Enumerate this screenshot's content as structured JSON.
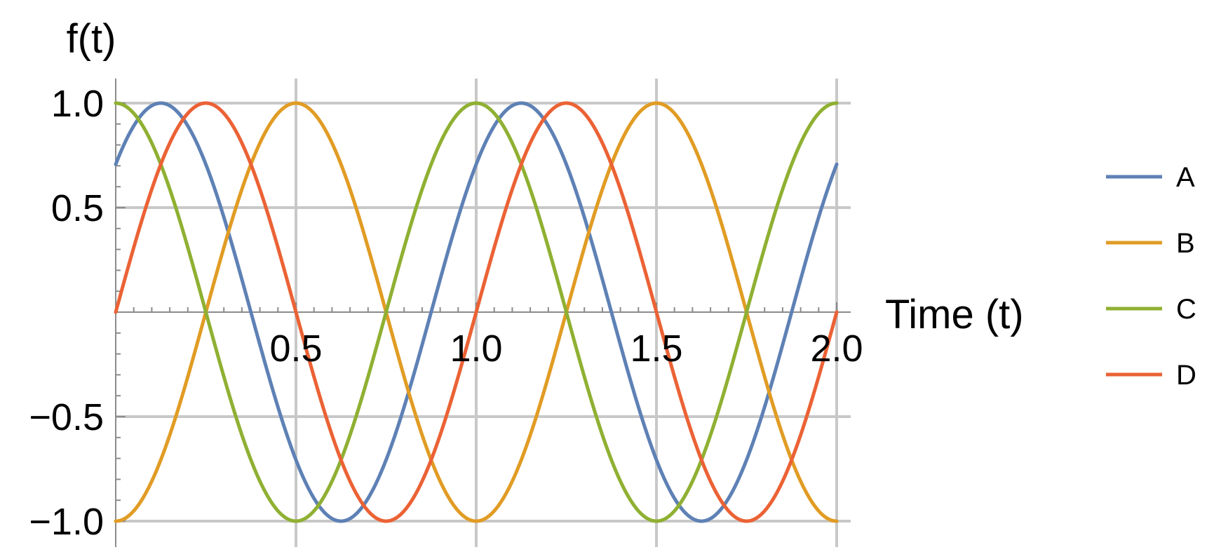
{
  "chart_data": {
    "type": "line",
    "xlabel": "Time (t)",
    "ylabel": "f(t)",
    "xlim": [
      0,
      2
    ],
    "ylim": [
      -1,
      1
    ],
    "x_ticks": [
      0.5,
      1.0,
      1.5,
      2.0
    ],
    "x_tick_labels": [
      "0.5",
      "1.0",
      "1.5",
      "2.0"
    ],
    "y_ticks": [
      -1.0,
      -0.5,
      0.5,
      1.0
    ],
    "y_tick_labels": [
      "−1.0",
      "−0.5",
      "0.5",
      "1.0"
    ],
    "grid": true,
    "legend_position": "right",
    "sample_step": 0.02,
    "series": [
      {
        "name": "A",
        "color": "#5e81b5",
        "formula": "cos(2*pi*(t - 0.125))",
        "values_at": {
          "0": 0.71,
          "0.125": 1.0,
          "0.625": -1.0,
          "1.125": 1.0,
          "1.625": -1.0,
          "2.0": 0.71
        }
      },
      {
        "name": "B",
        "color": "#e19c24",
        "formula": "-cos(2*pi*t)",
        "values_at": {
          "0": -1.0,
          "0.5": 1.0,
          "1.0": -1.0,
          "1.5": 1.0,
          "2.0": -1.0
        }
      },
      {
        "name": "C",
        "color": "#8fb032",
        "formula": "cos(2*pi*t)",
        "values_at": {
          "0": 1.0,
          "0.5": -1.0,
          "1.0": 1.0,
          "1.5": -1.0,
          "2.0": 1.0
        }
      },
      {
        "name": "D",
        "color": "#eb6235",
        "formula": "sin(2*pi*t)",
        "values_at": {
          "0": 0.0,
          "0.25": 1.0,
          "0.75": -1.0,
          "1.25": 1.0,
          "1.75": -1.0,
          "2.0": 0.0
        }
      }
    ]
  }
}
